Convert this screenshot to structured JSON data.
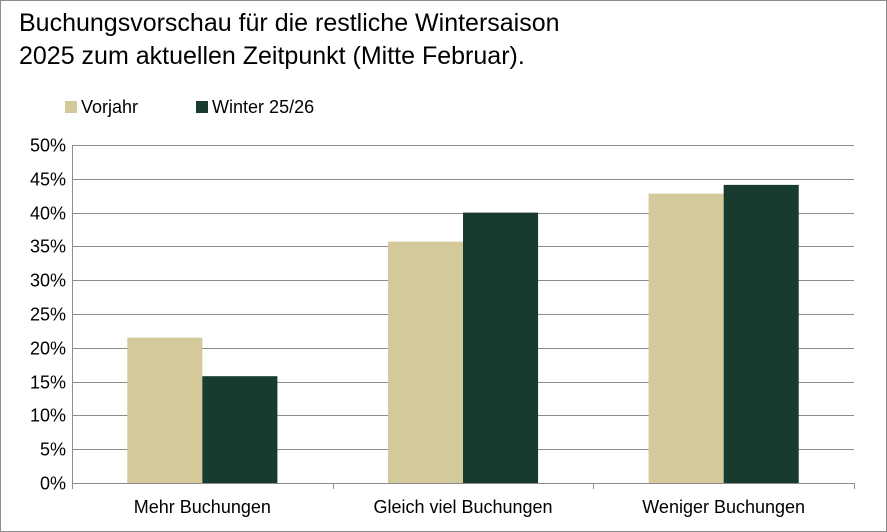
{
  "chart_data": {
    "type": "bar",
    "title_lines": [
      "Buchungsvorschau für die restliche Wintersaison",
      "2025 zum aktuellen Zeitpunkt (Mitte Februar)."
    ],
    "categories": [
      "Mehr Buchungen",
      "Gleich viel Buchungen",
      "Weniger Buchungen"
    ],
    "series": [
      {
        "name": "Vorjahr",
        "color": "#d4c99a",
        "values": [
          21.5,
          35.7,
          42.8
        ]
      },
      {
        "name": "Winter 25/26",
        "color": "#173b2e",
        "values": [
          15.8,
          40.0,
          44.1
        ]
      }
    ],
    "ylim": [
      0,
      50
    ],
    "y_ticks": [
      "0%",
      "5%",
      "10%",
      "15%",
      "20%",
      "25%",
      "30%",
      "35%",
      "40%",
      "45%",
      "50%"
    ],
    "grid": true,
    "legend_position": "top-left",
    "xlabel": "",
    "ylabel": ""
  }
}
